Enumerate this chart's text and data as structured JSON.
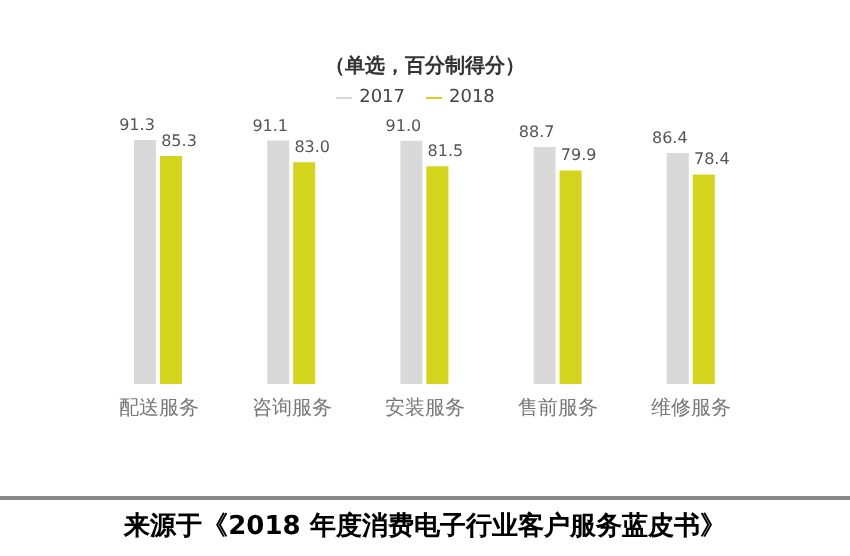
{
  "chart_data": {
    "type": "bar",
    "title": "（单选，百分制得分）",
    "categories": [
      "配送服务",
      "咨询服务",
      "安装服务",
      "售前服务",
      "维修服务"
    ],
    "series": [
      {
        "name": "2017",
        "color": "#d9d9d9",
        "values": [
          91.3,
          91.1,
          91.0,
          88.7,
          86.4
        ],
        "value_labels": [
          "91.3",
          "91.1",
          "91.0",
          "88.7",
          "86.4"
        ]
      },
      {
        "name": "2018",
        "color": "#d4d41c",
        "values": [
          85.3,
          83.0,
          81.5,
          79.9,
          78.4
        ],
        "value_labels": [
          "85.3",
          "83.0",
          "81.5",
          "79.9",
          "78.4"
        ]
      }
    ],
    "tick_labels": "x",
    "legend": "top",
    "grid": false,
    "annotations": [
      "来源于《2018 年度消费电子行业客户服务蓝皮书》"
    ]
  }
}
